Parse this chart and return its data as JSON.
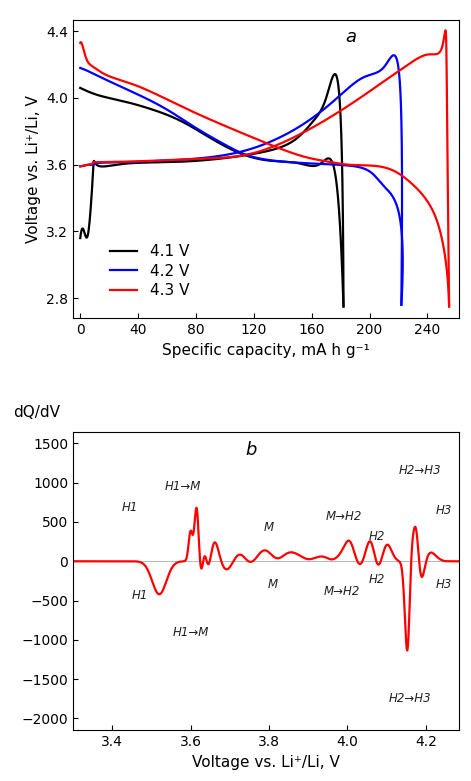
{
  "panel_a_label": "a",
  "panel_b_label": "b",
  "panel_a": {
    "xlabel": "Specific capacity, mA h g⁻¹",
    "ylabel": "Voltage vs. Li⁺/Li, V",
    "xlim": [
      -5,
      262
    ],
    "ylim": [
      2.68,
      4.47
    ],
    "xticks": [
      0,
      40,
      80,
      120,
      160,
      200,
      240
    ],
    "yticks": [
      2.8,
      3.2,
      3.6,
      4.0,
      4.4
    ],
    "legend": [
      "4.1 V",
      "4.2 V",
      "4.3 V"
    ],
    "colors": [
      "black",
      "blue",
      "red"
    ]
  },
  "panel_b": {
    "xlabel": "Voltage vs. Li⁺/Li, V",
    "ylabel": "dQ/dV",
    "xlim": [
      3.3,
      4.285
    ],
    "ylim": [
      -2150,
      1650
    ],
    "xticks": [
      3.4,
      3.6,
      3.8,
      4.0,
      4.2
    ],
    "yticks": [
      -2000,
      -1500,
      -1000,
      -500,
      0,
      500,
      1000,
      1500
    ],
    "color": "red"
  }
}
